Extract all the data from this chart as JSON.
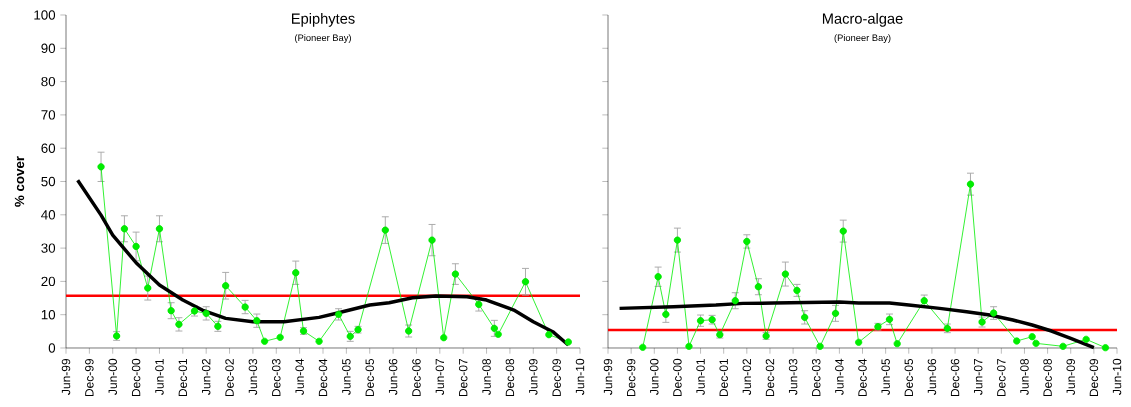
{
  "chart_data": [
    {
      "type": "line",
      "title": "Epiphytes",
      "subtitle": "(Pioneer Bay)",
      "ylabel": "% cover",
      "marker": "circle",
      "grid": false,
      "xlim": [
        "1999-06",
        "2010-06"
      ],
      "ylim": [
        0,
        100
      ],
      "xticks": [
        {
          "value": "1999-06",
          "label": "Jun-99"
        },
        {
          "value": "1999-12",
          "label": "Dec-99"
        },
        {
          "value": "2000-06",
          "label": "Jun-00"
        },
        {
          "value": "2000-12",
          "label": "Dec-00"
        },
        {
          "value": "2001-06",
          "label": "Jun-01"
        },
        {
          "value": "2001-12",
          "label": "Dec-01"
        },
        {
          "value": "2002-06",
          "label": "Jun-02"
        },
        {
          "value": "2002-12",
          "label": "Dec-02"
        },
        {
          "value": "2003-06",
          "label": "Jun-03"
        },
        {
          "value": "2003-12",
          "label": "Dec-03"
        },
        {
          "value": "2004-06",
          "label": "Jun-04"
        },
        {
          "value": "2004-12",
          "label": "Dec-04"
        },
        {
          "value": "2005-06",
          "label": "Jun-05"
        },
        {
          "value": "2005-12",
          "label": "Dec-05"
        },
        {
          "value": "2006-06",
          "label": "Jun-06"
        },
        {
          "value": "2006-12",
          "label": "Dec-06"
        },
        {
          "value": "2007-06",
          "label": "Jun-07"
        },
        {
          "value": "2007-12",
          "label": "Dec-07"
        },
        {
          "value": "2008-06",
          "label": "Jun-08"
        },
        {
          "value": "2008-12",
          "label": "Dec-08"
        },
        {
          "value": "2009-06",
          "label": "Jun-09"
        },
        {
          "value": "2009-12",
          "label": "Dec-09"
        },
        {
          "value": "2010-06",
          "label": "Jun-10"
        }
      ],
      "yticks": [
        0,
        10,
        20,
        30,
        40,
        50,
        60,
        70,
        80,
        90,
        100
      ],
      "x": [
        "2000-03",
        "2000-07",
        "2000-09",
        "2000-12",
        "2001-03",
        "2001-06",
        "2001-09",
        "2001-11",
        "2002-03",
        "2002-06",
        "2002-09",
        "2002-11",
        "2003-04",
        "2003-07",
        "2003-09",
        "2004-01",
        "2004-05",
        "2004-07",
        "2004-11",
        "2005-04",
        "2005-07",
        "2005-09",
        "2006-04",
        "2006-10",
        "2007-04",
        "2007-07",
        "2007-10",
        "2008-04",
        "2008-08",
        "2008-09",
        "2009-04",
        "2009-10",
        "2010-03"
      ],
      "series": [
        {
          "color": "#00ee00",
          "values": [
            54.4,
            3.6,
            35.8,
            30.5,
            18.0,
            35.8,
            11.2,
            7.1,
            11.1,
            10.4,
            6.5,
            18.7,
            12.3,
            8.2,
            2.0,
            3.2,
            22.6,
            5.1,
            2.0,
            10.1,
            3.5,
            5.5,
            35.4,
            5.1,
            32.4,
            3.1,
            22.2,
            13.1,
            5.9,
            4.1,
            19.9,
            4.0,
            1.8
          ],
          "errors": [
            4.4,
            1.3,
            3.9,
            4.3,
            3.6,
            3.9,
            2.4,
            2.0,
            1.5,
            2.0,
            1.5,
            4.0,
            2.0,
            2.0,
            null,
            null,
            3.5,
            1.0,
            null,
            1.7,
            1.5,
            1.0,
            4.0,
            1.8,
            4.7,
            null,
            3.1,
            2.0,
            2.4,
            null,
            4.0,
            null,
            null
          ]
        },
        {
          "type": "line",
          "color": "#000000",
          "marker": "none",
          "x": [
            "1999-09",
            "2000-03",
            "2000-06",
            "2000-12",
            "2001-06",
            "2001-12",
            "2002-05",
            "2002-11",
            "2003-06",
            "2004-02",
            "2004-11",
            "2005-04",
            "2005-12",
            "2006-05",
            "2006-11",
            "2007-05",
            "2008-01",
            "2008-06",
            "2009-01",
            "2009-06",
            "2009-11",
            "2010-03"
          ],
          "values": [
            50.4,
            39.9,
            33.9,
            25.6,
            18.9,
            14.4,
            11.4,
            8.9,
            7.9,
            7.9,
            9.2,
            10.6,
            12.9,
            13.6,
            15.1,
            15.6,
            15.4,
            14.4,
            11.4,
            7.9,
            4.9,
            0.9
          ]
        }
      ],
      "ref_lines": [
        {
          "axis": "y",
          "value": 15.7,
          "color": "#ff0000"
        }
      ]
    },
    {
      "type": "line",
      "title": "Macro-algae",
      "subtitle": "(Pioneer Bay)",
      "marker": "circle",
      "grid": false,
      "tick_labels": "x",
      "xlim": [
        "1999-06",
        "2010-06"
      ],
      "ylim": [
        0,
        100
      ],
      "xticks": [
        {
          "value": "1999-06",
          "label": "Jun-99"
        },
        {
          "value": "1999-12",
          "label": "Dec-99"
        },
        {
          "value": "2000-06",
          "label": "Jun-00"
        },
        {
          "value": "2000-12",
          "label": "Dec-00"
        },
        {
          "value": "2001-06",
          "label": "Jun-01"
        },
        {
          "value": "2001-12",
          "label": "Dec-01"
        },
        {
          "value": "2002-06",
          "label": "Jun-02"
        },
        {
          "value": "2002-12",
          "label": "Dec-02"
        },
        {
          "value": "2003-06",
          "label": "Jun-03"
        },
        {
          "value": "2003-12",
          "label": "Dec-03"
        },
        {
          "value": "2004-06",
          "label": "Jun-04"
        },
        {
          "value": "2004-12",
          "label": "Dec-04"
        },
        {
          "value": "2005-06",
          "label": "Jun-05"
        },
        {
          "value": "2005-12",
          "label": "Dec-05"
        },
        {
          "value": "2006-06",
          "label": "Jun-06"
        },
        {
          "value": "2006-12",
          "label": "Dec-06"
        },
        {
          "value": "2007-06",
          "label": "Jun-07"
        },
        {
          "value": "2007-12",
          "label": "Dec-07"
        },
        {
          "value": "2008-06",
          "label": "Jun-08"
        },
        {
          "value": "2008-12",
          "label": "Dec-08"
        },
        {
          "value": "2009-06",
          "label": "Jun-09"
        },
        {
          "value": "2009-12",
          "label": "Dec-09"
        },
        {
          "value": "2010-06",
          "label": "Jun-10"
        }
      ],
      "yticks": [
        0,
        10,
        20,
        30,
        40,
        50,
        60,
        70,
        80,
        90,
        100
      ],
      "x": [
        "2000-03",
        "2000-07",
        "2000-09",
        "2000-12",
        "2001-03",
        "2001-06",
        "2001-09",
        "2001-11",
        "2002-03",
        "2002-06",
        "2002-09",
        "2002-11",
        "2003-04",
        "2003-07",
        "2003-09",
        "2004-01",
        "2004-05",
        "2004-07",
        "2004-11",
        "2005-04",
        "2005-07",
        "2005-09",
        "2006-04",
        "2006-10",
        "2007-04",
        "2007-07",
        "2007-10",
        "2008-04",
        "2008-08",
        "2008-09",
        "2009-04",
        "2009-10",
        "2010-03"
      ],
      "series": [
        {
          "color": "#00ee00",
          "values": [
            0.2,
            21.4,
            10.1,
            32.4,
            0.5,
            8.2,
            8.5,
            4.0,
            14.2,
            32.0,
            18.4,
            3.6,
            22.2,
            17.3,
            9.2,
            0.5,
            10.4,
            35.1,
            1.7,
            6.4,
            8.6,
            1.3,
            14.2,
            5.9,
            49.2,
            7.8,
            10.5,
            2.1,
            3.4,
            1.4,
            0.5,
            2.6,
            0.1
          ],
          "errors": [
            null,
            2.9,
            2.4,
            3.6,
            null,
            1.7,
            1.3,
            1.0,
            2.4,
            2.0,
            2.4,
            1.0,
            3.6,
            1.8,
            2.0,
            null,
            2.4,
            3.3,
            null,
            1.0,
            1.6,
            null,
            1.7,
            1.3,
            3.3,
            1.5,
            1.9,
            null,
            null,
            null,
            null,
            null,
            null
          ]
        },
        {
          "type": "line",
          "color": "#000000",
          "marker": "none",
          "x": [
            "1999-09",
            "2000-11",
            "2001-10",
            "2002-05",
            "2003-01",
            "2004-06",
            "2004-11",
            "2005-07",
            "2005-12",
            "2006-08",
            "2007-03",
            "2007-09",
            "2008-03",
            "2008-08",
            "2009-01",
            "2009-06",
            "2009-12"
          ],
          "values": [
            11.9,
            12.4,
            12.9,
            13.4,
            13.5,
            13.8,
            13.5,
            13.5,
            12.9,
            11.9,
            10.9,
            9.9,
            8.4,
            6.9,
            5.1,
            2.9,
            0.1
          ]
        }
      ],
      "ref_lines": [
        {
          "axis": "y",
          "value": 5.4,
          "color": "#ff0000"
        }
      ]
    }
  ]
}
